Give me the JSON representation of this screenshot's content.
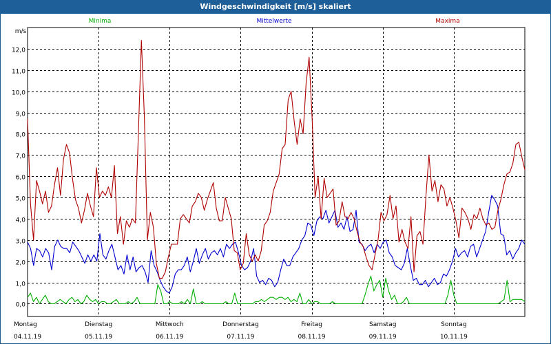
{
  "chart_data": {
    "type": "line",
    "title": "Windgeschwindigkeit [m/s] skaliert",
    "ylabel": "m/s",
    "ylim": [
      -0.6,
      13.0
    ],
    "grid": true,
    "legend_position": "top",
    "y_ticks": [
      "0,0",
      "1,0",
      "2,0",
      "3,0",
      "4,0",
      "5,0",
      "6,0",
      "7,0",
      "8,0",
      "9,0",
      "10,0",
      "11,0",
      "12,0"
    ],
    "y_tick_values": [
      0,
      1,
      2,
      3,
      4,
      5,
      6,
      7,
      8,
      9,
      10,
      11,
      12
    ],
    "x_range_hours": [
      0,
      168
    ],
    "x_ticks": [
      {
        "day": "Montag",
        "date": "04.11.19"
      },
      {
        "day": "Dienstag",
        "date": "05.11.19"
      },
      {
        "day": "Mittwoch",
        "date": "06.11.19"
      },
      {
        "day": "Donnerstag",
        "date": "07.11.19"
      },
      {
        "day": "Freitag",
        "date": "08.11.19"
      },
      {
        "day": "Samstag",
        "date": "09.11.19"
      },
      {
        "day": "Sonntag",
        "date": "10.11.19"
      }
    ],
    "series": [
      {
        "name": "Minima",
        "color": "#00b000",
        "values": [
          0.3,
          0.5,
          0.1,
          0.3,
          0.0,
          0.2,
          0.4,
          0.1,
          0.0,
          0.0,
          0.1,
          0.2,
          0.1,
          0.0,
          0.2,
          0.3,
          0.1,
          0.2,
          0.0,
          0.1,
          0.4,
          0.2,
          0.1,
          0.2,
          0.0,
          0.1,
          0.1,
          0.0,
          0.0,
          0.1,
          0.2,
          0.0,
          0.0,
          0.0,
          0.1,
          0.0,
          0.1,
          0.3,
          0.0,
          0.0,
          0.0,
          0.0,
          0.0,
          0.0,
          0.9,
          0.6,
          0.0,
          0.0,
          0.1,
          0.0,
          0.0,
          0.0,
          0.1,
          0.0,
          0.2,
          0.0,
          0.7,
          0.0,
          0.0,
          0.1,
          0.0,
          0.0,
          0.0,
          0.0,
          0.0,
          0.0,
          0.0,
          0.1,
          0.0,
          0.0,
          0.5,
          0.0,
          0.0,
          0.0,
          0.0,
          0.0,
          0.0,
          0.1,
          0.1,
          0.2,
          0.1,
          0.2,
          0.3,
          0.3,
          0.2,
          0.3,
          0.3,
          0.2,
          0.3,
          0.1,
          0.2,
          0.1,
          0.5,
          0.0,
          0.0,
          0.2,
          0.0,
          0.1,
          0.1,
          0.0,
          0.0,
          0.0,
          0.0,
          0.1,
          0.0,
          0.0,
          0.0,
          0.0,
          0.0,
          0.0,
          0.0,
          0.0,
          0.0,
          0.0,
          0.4,
          0.9,
          1.3,
          0.6,
          0.9,
          1.1,
          0.3,
          1.2,
          0.6,
          0.2,
          0.4,
          0.0,
          0.0,
          0.1,
          0.3,
          0.0,
          0.0,
          0.0,
          0.0,
          0.0,
          0.0,
          0.0,
          0.0,
          0.0,
          0.0,
          0.0,
          0.0,
          0.0,
          0.4,
          1.1,
          0.4,
          0.0,
          0.0,
          0.0,
          0.0,
          0.0,
          0.0,
          0.0,
          0.0,
          0.0,
          0.0,
          0.0,
          0.0,
          0.0,
          0.0,
          0.0,
          0.1,
          0.2,
          1.1,
          0.1,
          0.2,
          0.2,
          0.2,
          0.2,
          0.1
        ]
      },
      {
        "name": "Mittelwerte",
        "color": "#0000d0",
        "values": [
          2.9,
          2.6,
          1.8,
          2.6,
          2.5,
          2.2,
          2.6,
          2.4,
          1.6,
          2.7,
          3.0,
          2.7,
          2.6,
          2.6,
          2.4,
          2.9,
          2.7,
          2.5,
          2.2,
          1.9,
          2.3,
          2.0,
          2.3,
          2.0,
          3.3,
          2.3,
          2.1,
          2.5,
          2.8,
          2.2,
          1.6,
          1.8,
          1.4,
          2.3,
          1.6,
          2.2,
          1.5,
          1.7,
          1.8,
          1.5,
          1.0,
          2.5,
          1.8,
          1.5,
          1.1,
          0.8,
          0.6,
          0.5,
          0.8,
          1.4,
          1.6,
          1.6,
          1.8,
          2.2,
          1.5,
          2.0,
          2.6,
          1.9,
          2.3,
          2.6,
          2.1,
          2.4,
          2.5,
          2.3,
          2.6,
          2.2,
          2.8,
          2.6,
          2.8,
          2.9,
          2.4,
          1.8,
          1.6,
          1.7,
          2.0,
          2.6,
          1.3,
          1.0,
          1.1,
          0.9,
          1.2,
          1.1,
          0.8,
          1.0,
          1.6,
          2.1,
          1.8,
          1.8,
          2.2,
          2.4,
          2.6,
          3.0,
          3.2,
          3.8,
          3.7,
          3.2,
          3.9,
          4.1,
          4.0,
          4.4,
          3.8,
          4.1,
          4.4,
          3.6,
          3.8,
          3.5,
          4.1,
          3.4,
          3.5,
          4.4,
          2.9,
          2.8,
          2.5,
          2.7,
          2.8,
          2.4,
          2.8,
          2.6,
          2.9,
          3.0,
          2.4,
          2.2,
          1.8,
          1.7,
          1.6,
          1.9,
          2.6,
          1.8,
          1.1,
          1.2,
          0.9,
          0.9,
          1.1,
          0.8,
          1.0,
          1.2,
          0.9,
          1.0,
          1.4,
          1.3,
          1.6,
          2.0,
          2.6,
          2.2,
          2.4,
          2.5,
          2.2,
          2.7,
          2.8,
          2.2,
          2.6,
          3.0,
          3.4,
          4.3,
          5.1,
          4.9,
          4.6,
          3.3,
          3.2,
          2.3,
          2.5,
          2.1,
          2.4,
          2.6,
          3.0,
          2.8
        ]
      },
      {
        "name": "Maxima",
        "color": "#b00000",
        "values": [
          8.7,
          4.7,
          3.0,
          5.8,
          5.3,
          4.7,
          5.3,
          4.3,
          4.6,
          5.6,
          6.4,
          5.1,
          6.8,
          7.5,
          7.1,
          5.9,
          4.9,
          4.5,
          3.8,
          4.4,
          5.2,
          4.6,
          4.1,
          6.4,
          5.0,
          5.3,
          5.1,
          5.5,
          5.0,
          6.5,
          3.3,
          4.1,
          2.8,
          3.9,
          3.6,
          4.0,
          3.8,
          8.0,
          12.4,
          8.8,
          3.0,
          4.3,
          3.6,
          1.9,
          1.2,
          1.2,
          1.5,
          2.2,
          2.8,
          2.8,
          2.8,
          4.0,
          4.2,
          4.0,
          3.8,
          4.6,
          4.8,
          5.2,
          5.0,
          4.4,
          4.9,
          5.3,
          5.7,
          4.5,
          3.9,
          3.9,
          5.0,
          4.5,
          4.0,
          2.5,
          2.4,
          1.6,
          1.9,
          3.3,
          2.3,
          2.0,
          2.3,
          2.0,
          2.5,
          3.7,
          3.9,
          4.3,
          5.3,
          5.7,
          6.1,
          7.3,
          7.5,
          9.6,
          10.0,
          8.6,
          7.5,
          8.7,
          8.0,
          10.4,
          11.6,
          8.7,
          5.0,
          6.0,
          4.0,
          5.9,
          5.0,
          5.2,
          5.4,
          3.7,
          3.9,
          4.8,
          4.1,
          4.0,
          4.3,
          4.0,
          3.4,
          2.9,
          2.7,
          2.2,
          1.8,
          1.6,
          2.3,
          3.0,
          4.3,
          3.9,
          4.2,
          5.1,
          4.0,
          4.6,
          2.9,
          3.5,
          2.9,
          2.6,
          4.1,
          1.5,
          3.2,
          3.4,
          2.8,
          5.1,
          7.0,
          5.3,
          5.8,
          4.8,
          5.6,
          5.4,
          4.6,
          5.0,
          4.5,
          3.9,
          3.1,
          4.5,
          4.3,
          4.0,
          3.5,
          4.2,
          4.0,
          4.5,
          4.0,
          3.7,
          3.8,
          3.5,
          3.6,
          4.4,
          4.9,
          5.6,
          6.1,
          6.2,
          6.6,
          7.5,
          7.6,
          6.9,
          6.3
        ]
      }
    ]
  }
}
